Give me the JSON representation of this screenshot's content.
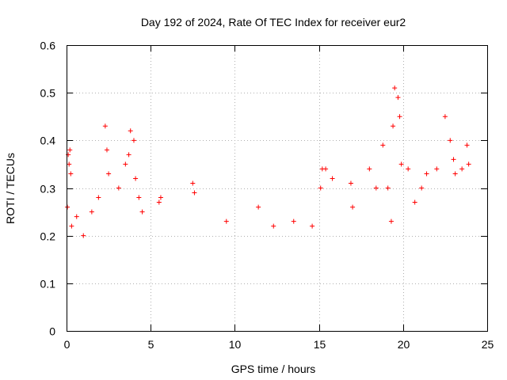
{
  "chart_data": {
    "type": "scatter",
    "title": "Day 192 of 2024, Rate Of TEC Index for receiver eur2",
    "xlabel": "GPS time / hours",
    "ylabel": "ROTI / TECUs",
    "xlim": [
      0,
      25
    ],
    "ylim": [
      0,
      0.6
    ],
    "xticks": [
      "0",
      "5",
      "10",
      "15",
      "20",
      "25"
    ],
    "yticks": [
      "0",
      "0.1",
      "0.2",
      "0.3",
      "0.4",
      "0.5",
      "0.6"
    ],
    "grid": true,
    "marker": "+",
    "color": "#ff0000",
    "series": [
      {
        "x": [
          0.05,
          0.1,
          0.15,
          0.2,
          0.25,
          0.3,
          0.6,
          1.0,
          1.5,
          1.9,
          2.3,
          2.4,
          2.5,
          3.1,
          3.5,
          3.7,
          3.8,
          4.0,
          4.1,
          4.3,
          4.5,
          5.5,
          5.6,
          7.5,
          7.6,
          9.5,
          11.4,
          12.3,
          13.5,
          14.6,
          15.1,
          15.2,
          15.4,
          15.8,
          16.9,
          17.0,
          18.0,
          18.4,
          18.8,
          19.1,
          19.3,
          19.4,
          19.5,
          19.7,
          19.8,
          19.9,
          20.3,
          20.7,
          21.1,
          21.4,
          22.0,
          22.5,
          22.8,
          23.0,
          23.1,
          23.5,
          23.8,
          23.9
        ],
        "y": [
          0.26,
          0.37,
          0.35,
          0.38,
          0.33,
          0.22,
          0.24,
          0.2,
          0.25,
          0.28,
          0.43,
          0.38,
          0.33,
          0.3,
          0.35,
          0.37,
          0.42,
          0.4,
          0.32,
          0.28,
          0.25,
          0.27,
          0.28,
          0.31,
          0.29,
          0.23,
          0.26,
          0.22,
          0.23,
          0.22,
          0.3,
          0.34,
          0.34,
          0.32,
          0.31,
          0.26,
          0.34,
          0.3,
          0.39,
          0.3,
          0.23,
          0.43,
          0.51,
          0.49,
          0.45,
          0.35,
          0.34,
          0.27,
          0.3,
          0.33,
          0.34,
          0.45,
          0.4,
          0.36,
          0.33,
          0.34,
          0.39,
          0.35
        ]
      }
    ]
  }
}
